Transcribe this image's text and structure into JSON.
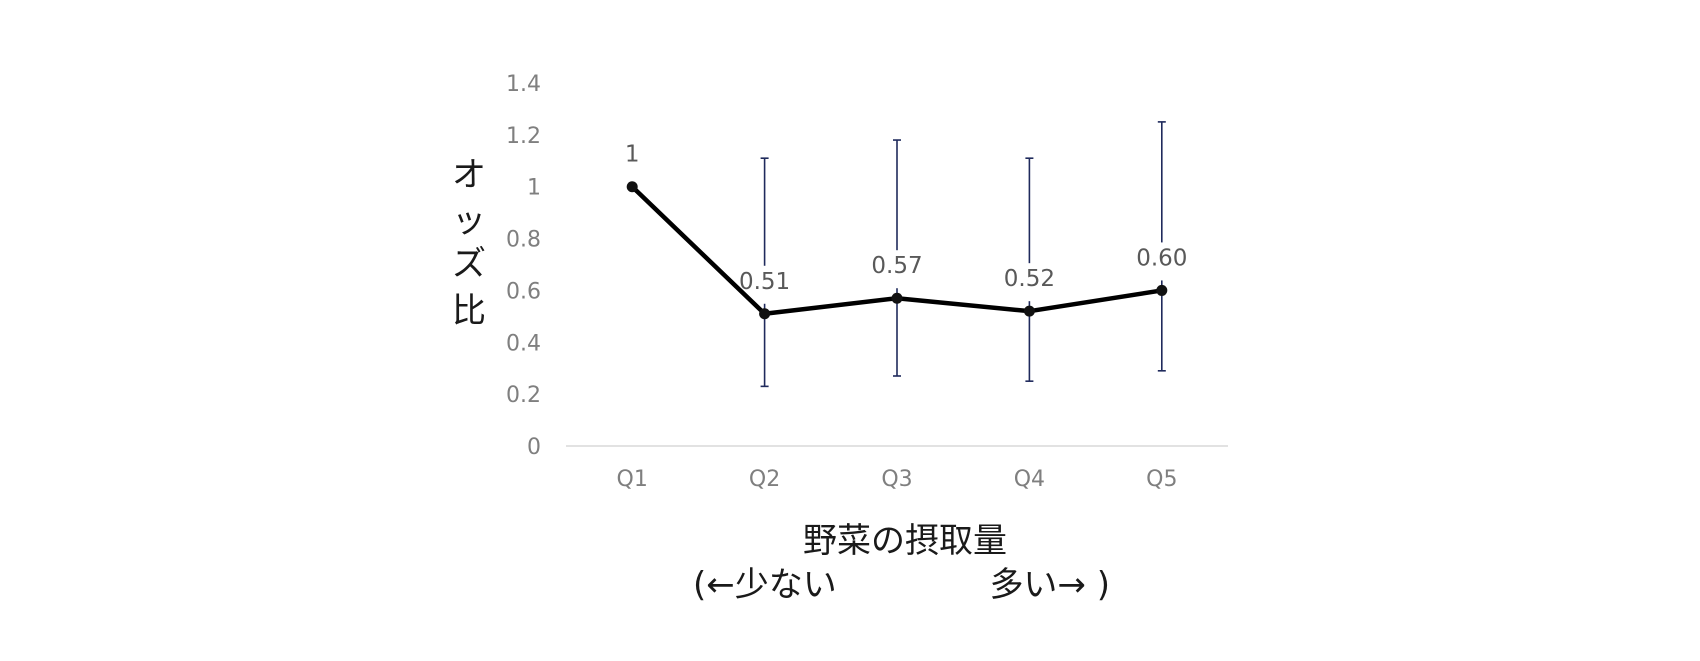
{
  "chart_data": {
    "type": "line",
    "categories": [
      "Q1",
      "Q2",
      "Q3",
      "Q4",
      "Q5"
    ],
    "values": [
      1.0,
      0.51,
      0.57,
      0.52,
      0.6
    ],
    "data_labels": [
      "1",
      "0.51",
      "0.57",
      "0.52",
      "0.60"
    ],
    "error_lower": [
      null,
      0.23,
      0.27,
      0.25,
      0.29
    ],
    "error_upper": [
      null,
      1.11,
      1.18,
      1.11,
      1.25
    ],
    "ylim": [
      0,
      1.4
    ],
    "yticks": [
      "0",
      "0.2",
      "0.4",
      "0.6",
      "0.8",
      "1",
      "1.2",
      "1.4"
    ],
    "ylabel": [
      "オ",
      "ッ",
      "ズ",
      "比"
    ],
    "xlabel_line1": "野菜の摂取量",
    "xlabel_line2_left": "(←少ない",
    "xlabel_line2_right": "多い→ )",
    "grid": false,
    "line_color": "#000000",
    "error_bar_color": "#1f2a5c",
    "axis_color": "#d9d9d9"
  }
}
